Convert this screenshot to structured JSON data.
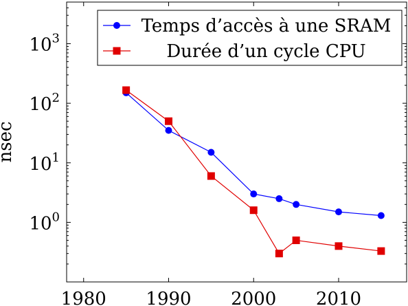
{
  "chart_data": {
    "type": "line",
    "title": "",
    "xlabel": "",
    "ylabel": "nsec",
    "xlim": [
      1978,
      2018
    ],
    "ylim": [
      0.1,
      5000
    ],
    "y_scale": "log",
    "x_ticks": [
      {
        "value": 1980,
        "label": "1980"
      },
      {
        "value": 1990,
        "label": "1990"
      },
      {
        "value": 2000,
        "label": "2000"
      },
      {
        "value": 2010,
        "label": "2010"
      }
    ],
    "y_ticks": [
      {
        "value": 1,
        "base": "10",
        "exp": "0"
      },
      {
        "value": 10,
        "base": "10",
        "exp": "1"
      },
      {
        "value": 100,
        "base": "10",
        "exp": "2"
      },
      {
        "value": 1000,
        "base": "10",
        "exp": "3"
      }
    ],
    "grid": false,
    "legend_position": "top-right",
    "series": [
      {
        "name": "Temps d’accès à une SRAM",
        "color": "#0000ff",
        "marker": "circle",
        "x": [
          1985,
          1990,
          1995,
          2000,
          2003,
          2005,
          2010,
          2015
        ],
        "y": [
          150,
          35,
          15,
          3,
          2.5,
          2,
          1.5,
          1.3
        ]
      },
      {
        "name": "Durée d’un cycle CPU",
        "color": "#e00000",
        "marker": "square",
        "x": [
          1985,
          1990,
          1995,
          2000,
          2003,
          2005,
          2010,
          2015
        ],
        "y": [
          166,
          50,
          6,
          1.6,
          0.3,
          0.5,
          0.4,
          0.33
        ]
      }
    ]
  }
}
